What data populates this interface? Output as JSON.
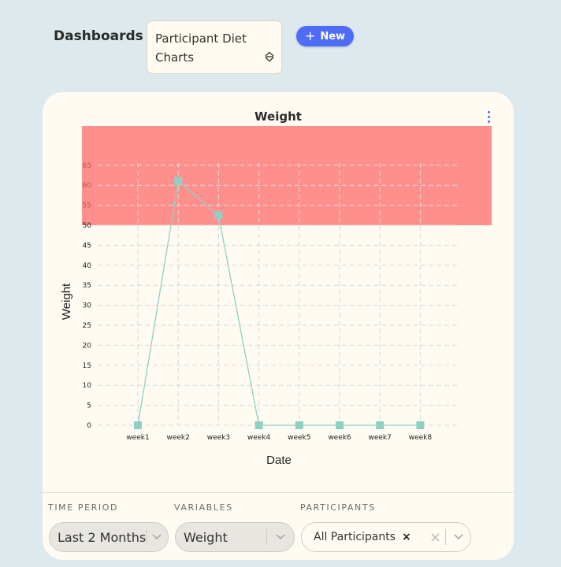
{
  "header": {
    "title": "Dashboards",
    "dashboard_select": {
      "value": "Participant Diet Charts"
    },
    "new_button": {
      "label": "New"
    }
  },
  "card": {
    "menu_icon": "kebab-menu-icon"
  },
  "chart_data": {
    "type": "line",
    "title": "Weight",
    "xlabel": "Date",
    "ylabel": "Weight",
    "categories": [
      "week1",
      "week2",
      "week3",
      "week4",
      "week5",
      "week6",
      "week7",
      "week8"
    ],
    "series": [
      {
        "values": [
          0,
          61,
          52.5,
          0,
          0,
          0,
          0,
          0
        ],
        "color": "#8ed0c4"
      }
    ],
    "yticks": [
      0,
      5,
      10,
      15,
      20,
      25,
      30,
      35,
      40,
      45,
      50,
      55,
      60,
      65
    ],
    "ylim": [
      0,
      75
    ],
    "threshold_band": {
      "from": 50,
      "to": 75,
      "color": "#ff8f8c"
    },
    "grid": true
  },
  "filters": {
    "time_period": {
      "label": "TIME PERIOD",
      "value": "Last 2 Months"
    },
    "variables": {
      "label": "VARIABLES",
      "value": "Weight"
    },
    "participants": {
      "label": "PARTICIPANTS",
      "chip": "All Participants",
      "chip_remove": "×",
      "clear": "×"
    }
  }
}
